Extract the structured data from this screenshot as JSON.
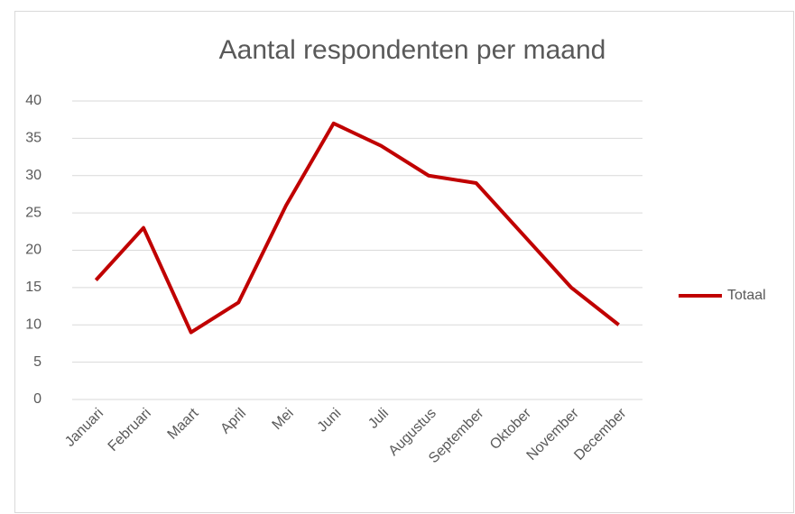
{
  "chart_data": {
    "type": "line",
    "title": "Aantal respondenten per maand",
    "categories": [
      "Januari",
      "Februari",
      "Maart",
      "April",
      "Mei",
      "Juni",
      "Juli",
      "Augustus",
      "September",
      "Oktober",
      "November",
      "December"
    ],
    "series": [
      {
        "name": "Totaal",
        "color": "#c00000",
        "values": [
          16,
          23,
          9,
          13,
          26,
          37,
          34,
          30,
          29,
          22,
          15,
          10
        ]
      }
    ],
    "ylim": [
      0,
      40
    ],
    "yticks": [
      0,
      5,
      10,
      15,
      20,
      25,
      30,
      35,
      40
    ],
    "grid": true,
    "legend": "right"
  }
}
